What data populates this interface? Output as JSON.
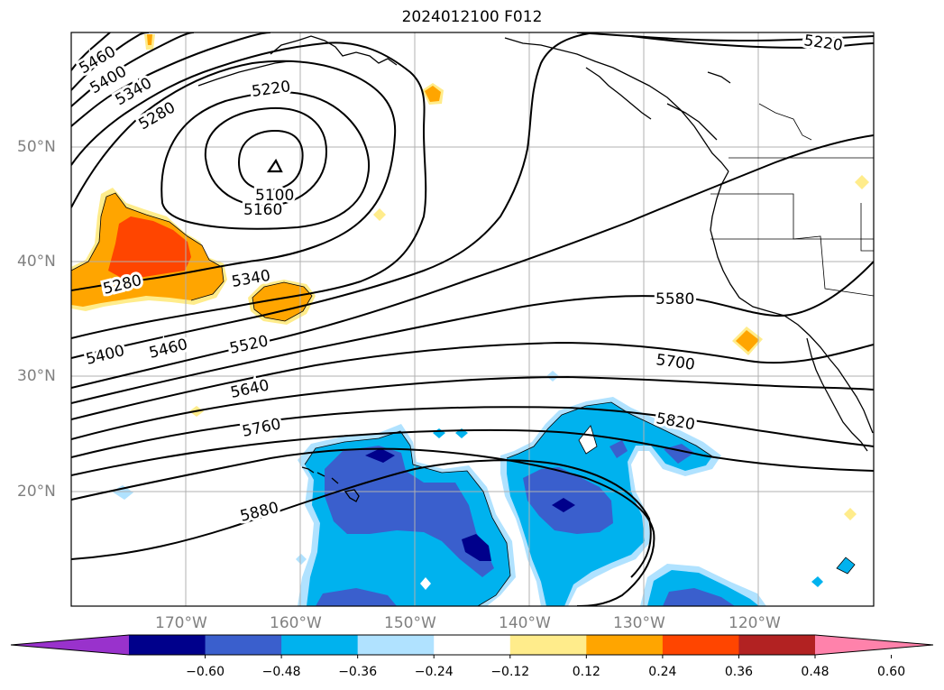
{
  "title": "2024012100 F012",
  "lat_labels": [
    "50°N",
    "40°N",
    "30°N",
    "20°N"
  ],
  "lon_labels": [
    "170°W",
    "160°W",
    "150°W",
    "140°W",
    "130°W",
    "120°W"
  ],
  "contour_labels": [
    "5460",
    "5400",
    "5340",
    "5280",
    "5220",
    "5100",
    "5160",
    "5220",
    "5280",
    "5340",
    "5400",
    "5460",
    "5520",
    "5580",
    "5640",
    "5700",
    "5760",
    "5820",
    "5880"
  ],
  "colorbar": {
    "colors": [
      "#9932cc",
      "#00008b",
      "#3a5fcd",
      "#00b2ee",
      "#b0e2ff",
      "#ffffff",
      "#ffec8b",
      "#ffa500",
      "#ff4500",
      "#b22222",
      "#ff82ab"
    ],
    "tick_labels": [
      "−0.60",
      "−0.48",
      "−0.36",
      "−0.24",
      "−0.12",
      "0.12",
      "0.24",
      "0.36",
      "0.48",
      "0.60"
    ]
  }
}
